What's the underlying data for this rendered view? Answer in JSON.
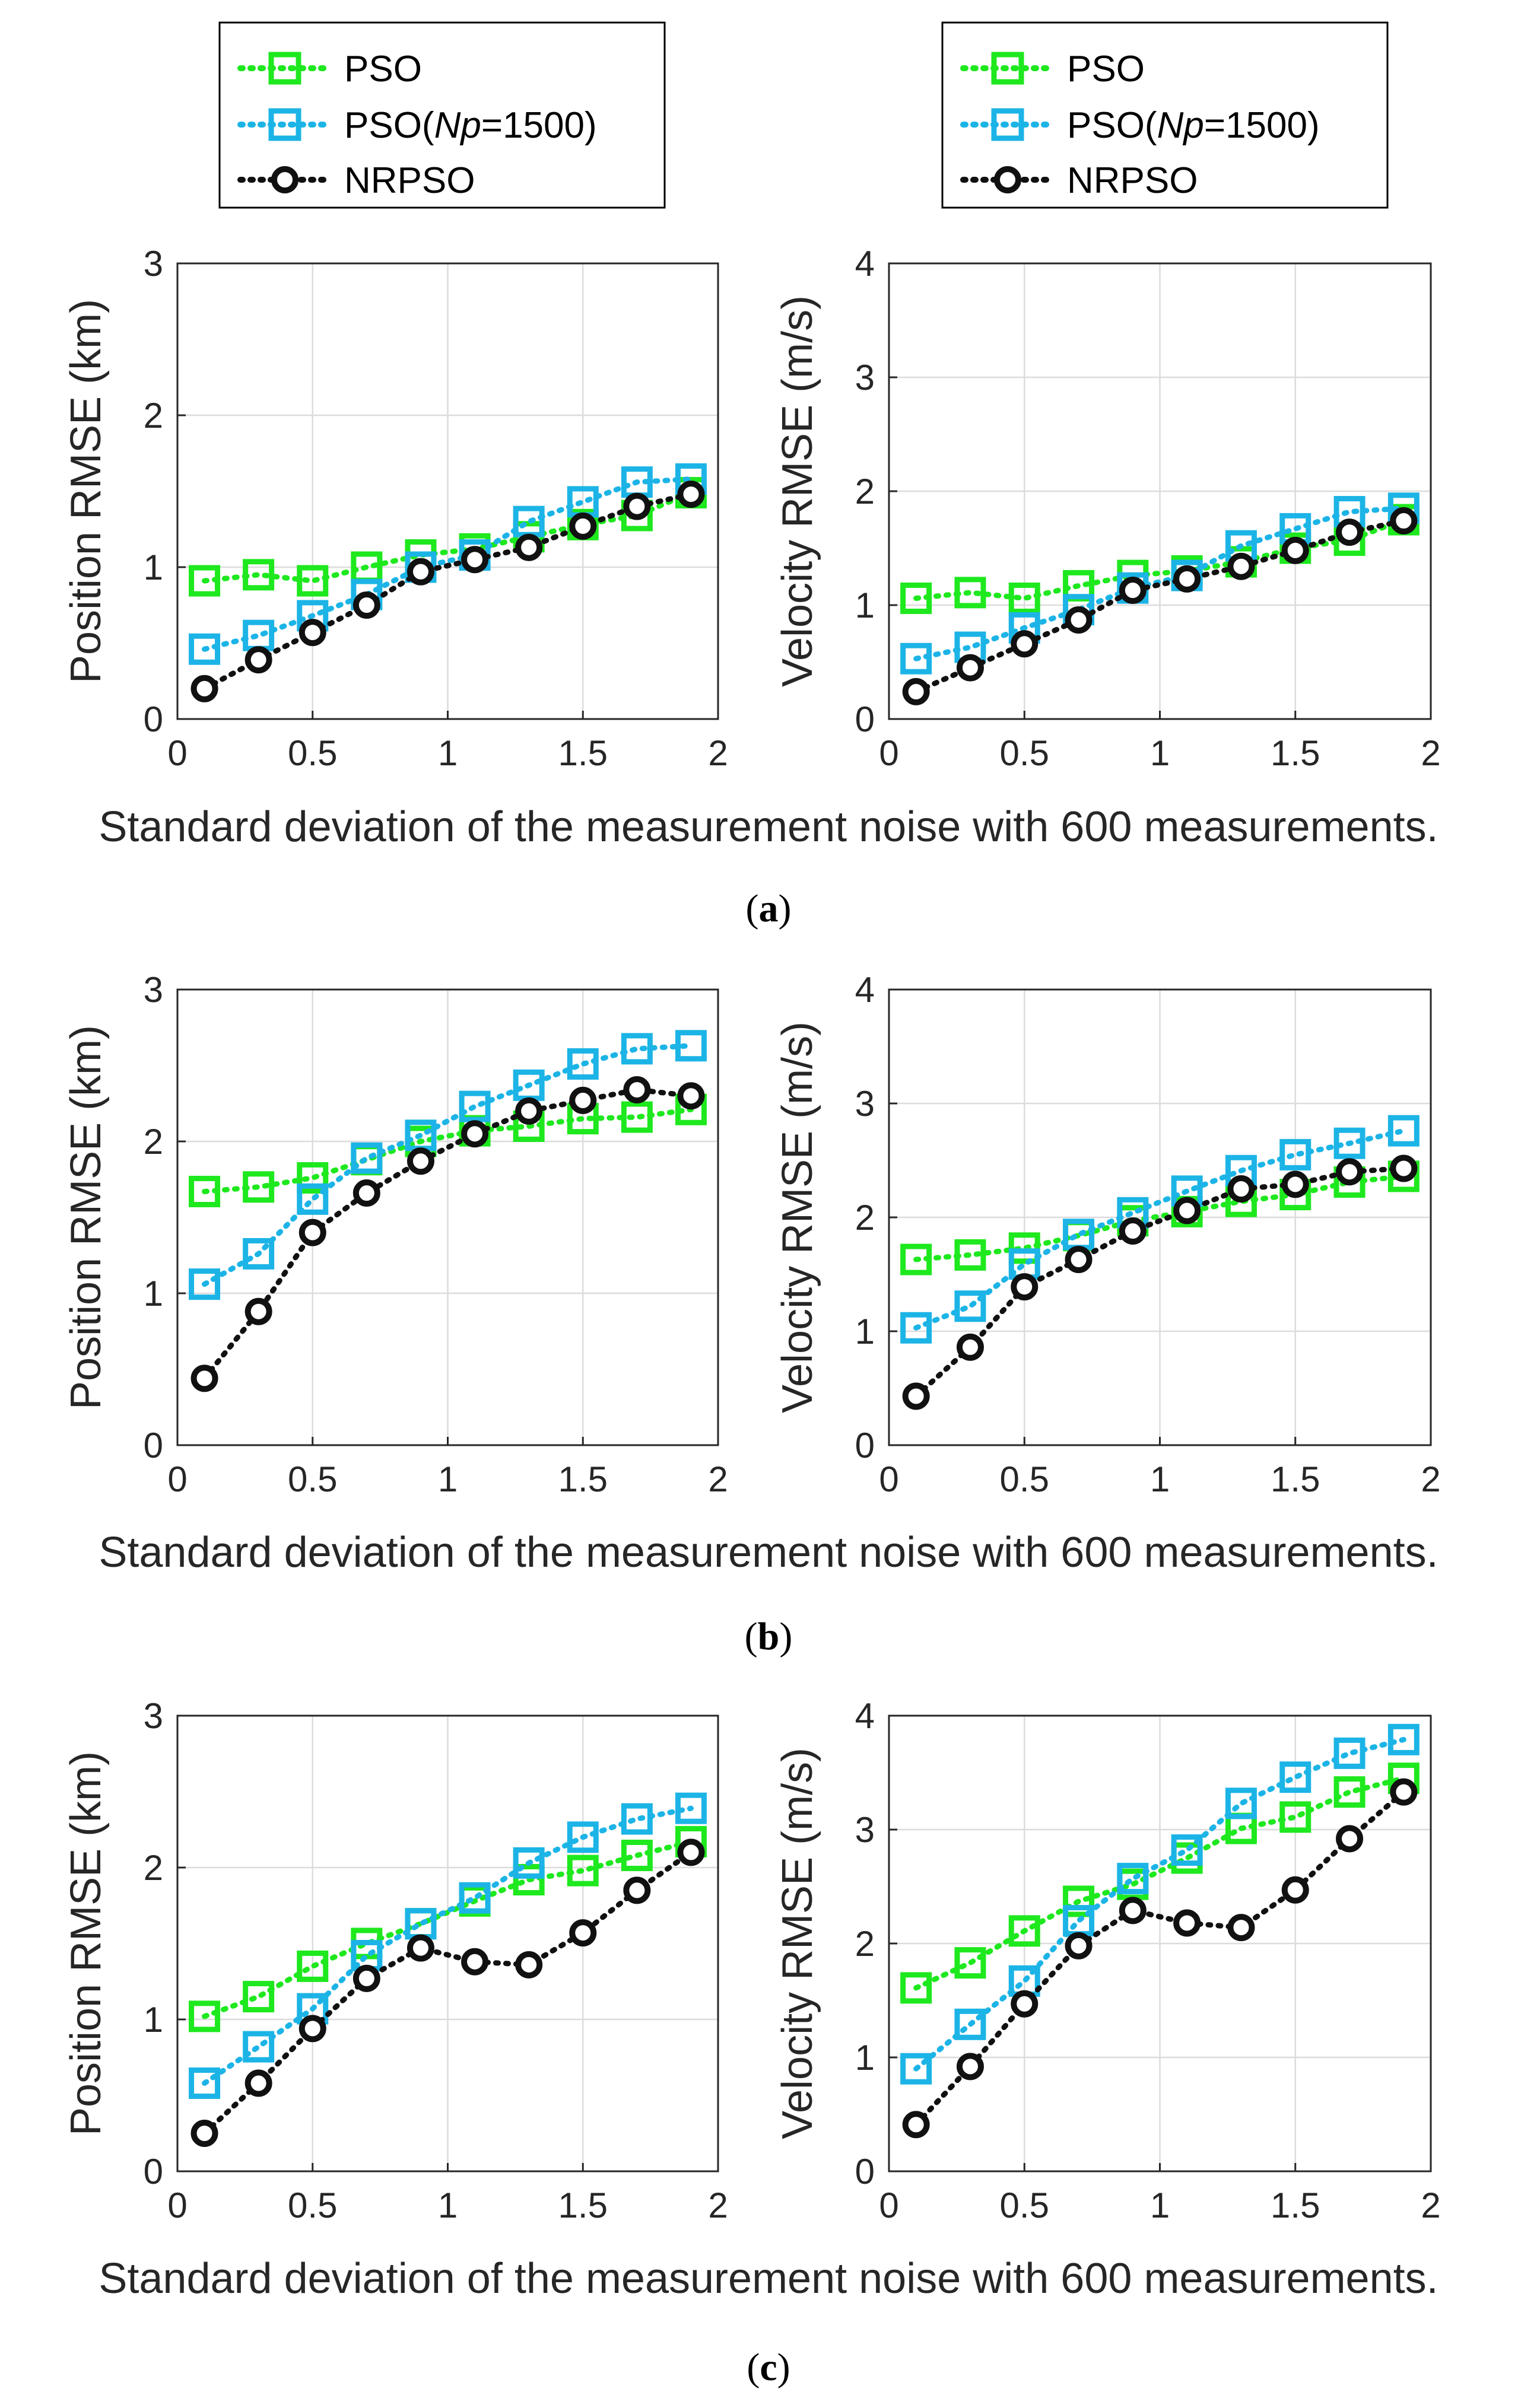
{
  "colors": {
    "pso": "#1ee81e",
    "pso_np": "#1cb4e6",
    "nrpso": "#111111",
    "grid": "#dcdcdc",
    "axis": "#262626"
  },
  "legend": {
    "pso_label": "PSO",
    "pso_np_prefix": "PSO(",
    "pso_np_var": "Np",
    "pso_np_suffix": "=1500)",
    "nrpso_label": "NRPSO"
  },
  "x_axis_label": "Standard deviation of the measurement noise with 600 measurements.",
  "captions": [
    {
      "open": "(",
      "letter": "a",
      "close": ")"
    },
    {
      "open": "(",
      "letter": "b",
      "close": ")"
    },
    {
      "open": "(",
      "letter": "c",
      "close": ")"
    }
  ],
  "chart_data": [
    {
      "type": "line",
      "panel": "a",
      "metric": "position",
      "ylabel": "Position RMSE (km)",
      "xlabel": "Standard deviation of the measurement noise with 600 measurements.",
      "xlim": [
        0,
        2
      ],
      "ylim": [
        0,
        3
      ],
      "xticks": [
        "0",
        "0.5",
        "1",
        "1.5",
        "2"
      ],
      "yticks": [
        "0",
        "1",
        "2",
        "3"
      ],
      "grid": true,
      "x": [
        0.1,
        0.3,
        0.5,
        0.7,
        0.9,
        1.1,
        1.3,
        1.5,
        1.7,
        1.9
      ],
      "series": [
        {
          "name": "PSO",
          "values": [
            0.91,
            0.95,
            0.91,
            1.0,
            1.08,
            1.12,
            1.2,
            1.28,
            1.34,
            1.49
          ]
        },
        {
          "name": "PSO(Np=1500)",
          "values": [
            0.46,
            0.55,
            0.68,
            0.82,
            1.0,
            1.08,
            1.3,
            1.43,
            1.56,
            1.58
          ]
        },
        {
          "name": "NRPSO",
          "values": [
            0.2,
            0.39,
            0.57,
            0.75,
            0.97,
            1.05,
            1.13,
            1.27,
            1.4,
            1.48
          ]
        }
      ]
    },
    {
      "type": "line",
      "panel": "a",
      "metric": "velocity",
      "ylabel": "Velocity RMSE (m/s)",
      "xlabel": "Standard deviation of the measurement noise with 600 measurements.",
      "xlim": [
        0,
        2
      ],
      "ylim": [
        0,
        4
      ],
      "xticks": [
        "0",
        "0.5",
        "1",
        "1.5",
        "2"
      ],
      "yticks": [
        "0",
        "1",
        "2",
        "3",
        "4"
      ],
      "grid": true,
      "x": [
        0.1,
        0.3,
        0.5,
        0.7,
        0.9,
        1.1,
        1.3,
        1.5,
        1.7,
        1.9
      ],
      "series": [
        {
          "name": "PSO",
          "values": [
            1.06,
            1.11,
            1.06,
            1.17,
            1.26,
            1.3,
            1.38,
            1.5,
            1.57,
            1.75
          ]
        },
        {
          "name": "PSO(Np=1500)",
          "values": [
            0.53,
            0.63,
            0.8,
            0.96,
            1.15,
            1.26,
            1.52,
            1.67,
            1.82,
            1.85
          ]
        },
        {
          "name": "NRPSO",
          "values": [
            0.24,
            0.45,
            0.66,
            0.87,
            1.13,
            1.23,
            1.34,
            1.48,
            1.64,
            1.74
          ]
        }
      ]
    },
    {
      "type": "line",
      "panel": "b",
      "metric": "position",
      "ylabel": "Position RMSE (km)",
      "xlabel": "Standard deviation of the measurement noise with 600 measurements.",
      "xlim": [
        0,
        2
      ],
      "ylim": [
        0,
        3
      ],
      "xticks": [
        "0",
        "0.5",
        "1",
        "1.5",
        "2"
      ],
      "yticks": [
        "0",
        "1",
        "2",
        "3"
      ],
      "grid": true,
      "x": [
        0.1,
        0.3,
        0.5,
        0.7,
        0.9,
        1.1,
        1.3,
        1.5,
        1.7,
        1.9
      ],
      "series": [
        {
          "name": "PSO",
          "values": [
            1.67,
            1.7,
            1.76,
            1.88,
            2.0,
            2.07,
            2.1,
            2.15,
            2.16,
            2.21
          ]
        },
        {
          "name": "PSO(Np=1500)",
          "values": [
            1.06,
            1.26,
            1.62,
            1.89,
            2.04,
            2.23,
            2.37,
            2.51,
            2.61,
            2.63
          ]
        },
        {
          "name": "NRPSO",
          "values": [
            0.44,
            0.88,
            1.4,
            1.66,
            1.87,
            2.05,
            2.2,
            2.27,
            2.34,
            2.3
          ]
        }
      ]
    },
    {
      "type": "line",
      "panel": "b",
      "metric": "velocity",
      "ylabel": "Velocity RMSE (m/s)",
      "xlabel": "Standard deviation of the measurement noise with 600 measurements.",
      "xlim": [
        0,
        2
      ],
      "ylim": [
        0,
        4
      ],
      "xticks": [
        "0",
        "0.5",
        "1",
        "1.5",
        "2"
      ],
      "yticks": [
        "0",
        "1",
        "2",
        "3",
        "4"
      ],
      "grid": true,
      "x": [
        0.1,
        0.3,
        0.5,
        0.7,
        0.9,
        1.1,
        1.3,
        1.5,
        1.7,
        1.9
      ],
      "series": [
        {
          "name": "PSO",
          "values": [
            1.63,
            1.67,
            1.73,
            1.84,
            1.97,
            2.05,
            2.14,
            2.2,
            2.31,
            2.36
          ]
        },
        {
          "name": "PSO(Np=1500)",
          "values": [
            1.03,
            1.22,
            1.59,
            1.85,
            2.04,
            2.23,
            2.41,
            2.55,
            2.65,
            2.76
          ]
        },
        {
          "name": "NRPSO",
          "values": [
            0.43,
            0.86,
            1.39,
            1.63,
            1.88,
            2.06,
            2.25,
            2.29,
            2.4,
            2.43
          ]
        }
      ]
    },
    {
      "type": "line",
      "panel": "c",
      "metric": "position",
      "ylabel": "Position RMSE (km)",
      "xlabel": "Standard deviation of the measurement noise with 600 measurements.",
      "xlim": [
        0,
        2
      ],
      "ylim": [
        0,
        3
      ],
      "xticks": [
        "0",
        "0.5",
        "1",
        "1.5",
        "2"
      ],
      "yticks": [
        "0",
        "1",
        "2",
        "3"
      ],
      "grid": true,
      "x": [
        0.1,
        0.3,
        0.5,
        0.7,
        0.9,
        1.1,
        1.3,
        1.5,
        1.7,
        1.9
      ],
      "series": [
        {
          "name": "PSO",
          "values": [
            1.02,
            1.15,
            1.35,
            1.5,
            1.63,
            1.78,
            1.92,
            1.98,
            2.08,
            2.17
          ]
        },
        {
          "name": "PSO(Np=1500)",
          "values": [
            0.58,
            0.82,
            1.07,
            1.42,
            1.63,
            1.8,
            2.03,
            2.2,
            2.32,
            2.39
          ]
        },
        {
          "name": "NRPSO",
          "values": [
            0.25,
            0.58,
            0.94,
            1.27,
            1.47,
            1.38,
            1.36,
            1.57,
            1.85,
            2.1
          ]
        }
      ]
    },
    {
      "type": "line",
      "panel": "c",
      "metric": "velocity",
      "ylabel": "Velocity RMSE (m/s)",
      "xlabel": "Standard deviation of the measurement noise with 600 measurements.",
      "xlim": [
        0,
        2
      ],
      "ylim": [
        0,
        4
      ],
      "xticks": [
        "0",
        "0.5",
        "1",
        "1.5",
        "2"
      ],
      "yticks": [
        "0",
        "1",
        "2",
        "3",
        "4"
      ],
      "grid": true,
      "x": [
        0.1,
        0.3,
        0.5,
        0.7,
        0.9,
        1.1,
        1.3,
        1.5,
        1.7,
        1.9
      ],
      "series": [
        {
          "name": "PSO",
          "values": [
            1.61,
            1.83,
            2.11,
            2.37,
            2.52,
            2.75,
            3.01,
            3.11,
            3.33,
            3.45
          ]
        },
        {
          "name": "PSO(Np=1500)",
          "values": [
            0.9,
            1.29,
            1.67,
            2.2,
            2.57,
            2.82,
            3.23,
            3.46,
            3.67,
            3.79
          ]
        },
        {
          "name": "NRPSO",
          "values": [
            0.41,
            0.92,
            1.47,
            1.98,
            2.29,
            2.18,
            2.14,
            2.47,
            2.92,
            3.33
          ]
        }
      ]
    }
  ]
}
